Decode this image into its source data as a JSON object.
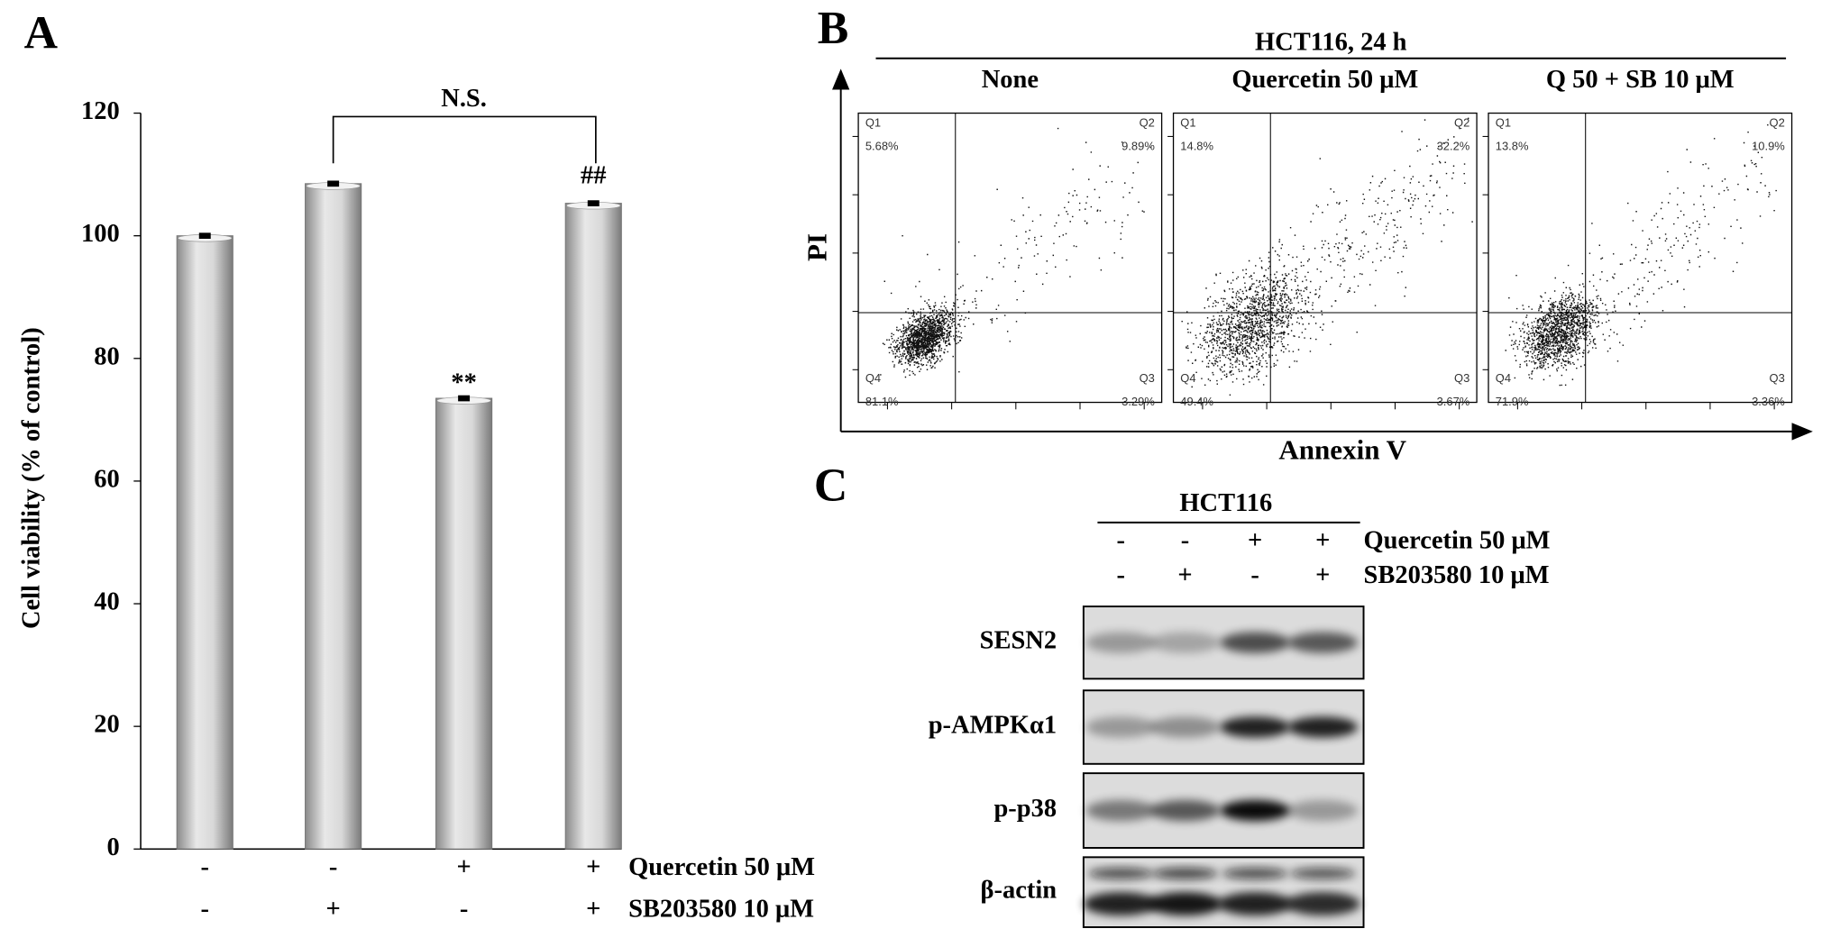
{
  "chart_data": {
    "type": "bar",
    "panel": "A",
    "y_label": "Cell viability (% of control)",
    "values": [
      100,
      108.5,
      73.5,
      105.3
    ],
    "errors": [
      0.3,
      0.3,
      0.3,
      0.3
    ],
    "ylim": [
      0,
      120
    ],
    "yticks": [
      0,
      20,
      40,
      60,
      80,
      100,
      120
    ],
    "treatments": [
      {
        "name": "Quercetin 50 μM",
        "signs": [
          "-",
          "-",
          "+",
          "+"
        ]
      },
      {
        "name": "SB203580 10 μM",
        "signs": [
          "-",
          "+",
          "-",
          "+"
        ]
      }
    ],
    "annotations": [
      "N.S.",
      "**",
      "##"
    ]
  },
  "flow": {
    "panel": "B",
    "title": "HCT116, 24 h",
    "x_label": "Annexin V",
    "y_label": "PI",
    "plots": [
      {
        "name": "None",
        "quadrants": [
          {
            "label": "Q1",
            "percent": "5.68%"
          },
          {
            "label": "Q2",
            "percent": "9.89%"
          },
          {
            "label": "Q3",
            "percent": "3.29%"
          },
          {
            "label": "Q4",
            "percent": "81.1%"
          }
        ]
      },
      {
        "name": "Quercetin 50 μM",
        "quadrants": [
          {
            "label": "Q1",
            "percent": "14.8%"
          },
          {
            "label": "Q2",
            "percent": "32.2%"
          },
          {
            "label": "Q3",
            "percent": "3.67%"
          },
          {
            "label": "Q4",
            "percent": "49.4%"
          }
        ]
      },
      {
        "name": "Q 50 + SB 10 μM",
        "quadrants": [
          {
            "label": "Q1",
            "percent": "13.8%"
          },
          {
            "label": "Q2",
            "percent": "10.9%"
          },
          {
            "label": "Q3",
            "percent": "3.36%"
          },
          {
            "label": "Q4",
            "percent": "71.9%"
          }
        ]
      }
    ]
  },
  "blot": {
    "panel": "C",
    "title": "HCT116",
    "treatments": [
      {
        "name": "Quercetin 50 μM",
        "signs": [
          "-",
          "-",
          "+",
          "+"
        ]
      },
      {
        "name": "SB203580 10 μM",
        "signs": [
          "-",
          "+",
          "-",
          "+"
        ]
      }
    ],
    "proteins": [
      "SESN2",
      "p-AMPKα1",
      "p-p38",
      "β-actin"
    ]
  }
}
